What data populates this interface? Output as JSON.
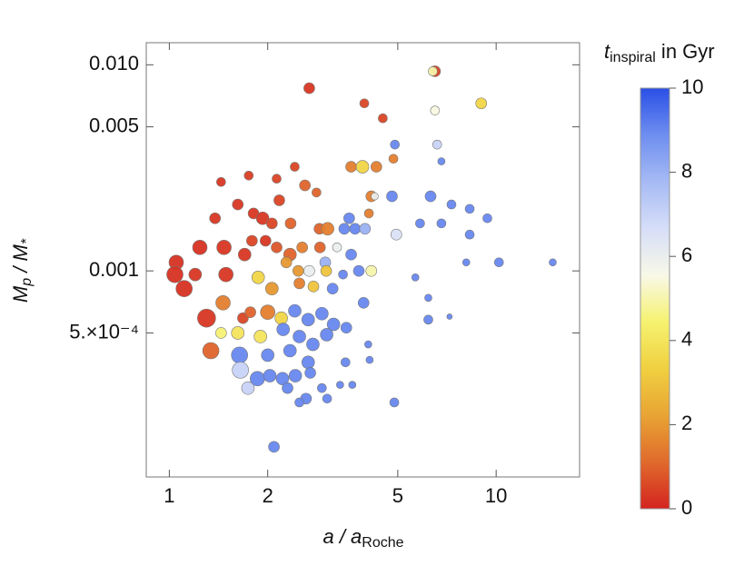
{
  "chart_data": {
    "type": "scatter",
    "x_label": {
      "text": "a / a",
      "sub": "Roche"
    },
    "y_label": {
      "m1": "M",
      "sub1": "p",
      "m2": " / M",
      "sub2": "*"
    },
    "colorbar_label": {
      "text": "t",
      "sub": "inspiral",
      "rest": " in Gyr"
    },
    "log_x": true,
    "log_y": true,
    "xlim": [
      0.85,
      18
    ],
    "xticks": [
      1,
      2,
      5,
      10
    ],
    "ylim": [
      0.0001,
      0.0128
    ],
    "yticks": [
      {
        "value": 0.0005,
        "label": "5.×10⁻⁴"
      },
      0.001,
      0.005,
      {
        "value": 0.01,
        "label": "0.010"
      }
    ],
    "clim": [
      0,
      10
    ],
    "cticks": [
      0,
      2,
      4,
      6,
      8,
      10
    ],
    "colorscale": [
      "#d42420",
      "#e06a2c",
      "#e8a434",
      "#f0d040",
      "#f6f270",
      "#f8f8e8",
      "#d6def8",
      "#a6baf4",
      "#6e8ef0",
      "#2a4fe6"
    ],
    "x": [
      2.68,
      6.5,
      6.4,
      3.95,
      4.5,
      9.0,
      6.5,
      4.9,
      6.6,
      6.8,
      4.85,
      2.42,
      3.6,
      3.9,
      4.3,
      1.75,
      1.44,
      2.13,
      2.6,
      2.82,
      1.62,
      2.17,
      4.15,
      4.25,
      4.8,
      6.3,
      7.3,
      8.3,
      9.4,
      3.55,
      4.08,
      5.85,
      6.8,
      1.38,
      1.81,
      1.93,
      2.06,
      2.35,
      2.88,
      3.05,
      3.43,
      3.7,
      3.97,
      4.95,
      8.3,
      14.9,
      10.2,
      8.1,
      1.05,
      1.04,
      1.11,
      1.24,
      1.47,
      1.7,
      1.49,
      1.2,
      1.79,
      1.97,
      2.13,
      2.34,
      2.55,
      2.89,
      3.26,
      3.0,
      3.6,
      3.8,
      4.15,
      3.02,
      2.68,
      2.48,
      2.28,
      1.87,
      2.06,
      2.5,
      2.76,
      3.16,
      3.4,
      5.66,
      6.2,
      7.2,
      6.2,
      3.93,
      1.46,
      1.3,
      1.68,
      1.77,
      2.0,
      2.2,
      2.42,
      2.66,
      2.93,
      3.18,
      3.48,
      1.44,
      1.62,
      1.9,
      2.23,
      2.5,
      2.75,
      3.03,
      4.06,
      1.34,
      1.64,
      2.0,
      2.34,
      2.66,
      1.65,
      1.86,
      2.03,
      2.22,
      2.43,
      2.7,
      3.46,
      4.1,
      1.74,
      2.3,
      2.62,
      2.93,
      3.33,
      3.63,
      2.5,
      3.04,
      4.88,
      2.09
    ],
    "values": [
      0.0077,
      0.0093,
      0.0093,
      0.0065,
      0.0055,
      0.0065,
      0.006,
      0.0041,
      0.0041,
      0.0034,
      0.0035,
      0.0032,
      0.0032,
      0.0032,
      0.0032,
      0.0029,
      0.0027,
      0.0028,
      0.0026,
      0.0024,
      0.0021,
      0.0022,
      0.0023,
      0.0023,
      0.0023,
      0.0023,
      0.0021,
      0.002,
      0.0018,
      0.0018,
      0.0019,
      0.0017,
      0.0017,
      0.0018,
      0.0019,
      0.0018,
      0.0017,
      0.0017,
      0.0016,
      0.0016,
      0.0016,
      0.0016,
      0.0016,
      0.0015,
      0.0015,
      0.0011,
      0.0011,
      0.0011,
      0.0011,
      0.00096,
      0.00082,
      0.0013,
      0.0013,
      0.0012,
      0.00096,
      0.00096,
      0.0014,
      0.0014,
      0.0013,
      0.0012,
      0.0013,
      0.0013,
      0.0013,
      0.0011,
      0.0012,
      0.001,
      0.001,
      0.001,
      0.001,
      0.001,
      0.0011,
      0.00093,
      0.00082,
      0.00087,
      0.00084,
      0.00082,
      0.00096,
      0.00093,
      0.00074,
      0.0006,
      0.00058,
      0.0007,
      0.0007,
      0.00059,
      0.00059,
      0.00063,
      0.00063,
      0.00059,
      0.00064,
      0.00058,
      0.00062,
      0.00055,
      0.00053,
      0.0005,
      0.0005,
      0.00048,
      0.00052,
      0.00048,
      0.00044,
      0.00049,
      0.00044,
      0.00041,
      0.00039,
      0.00039,
      0.00041,
      0.00036,
      0.00033,
      0.0003,
      0.00031,
      0.0003,
      0.00031,
      0.00032,
      0.00036,
      0.00037,
      0.00027,
      0.00027,
      0.00024,
      0.00027,
      0.00028,
      0.00028,
      0.00023,
      0.00024,
      0.00023,
      0.00014
    ],
    "sizes": [
      6,
      6,
      5,
      5,
      5,
      6,
      5,
      5,
      5,
      4,
      5,
      5,
      6,
      7,
      6,
      5,
      5,
      5,
      6,
      5,
      6,
      6,
      6,
      4,
      6,
      6,
      5,
      5,
      5,
      6,
      5,
      5,
      5,
      6,
      6,
      7,
      6,
      6,
      6,
      7,
      6,
      6,
      6,
      6,
      5,
      4,
      5,
      4,
      8,
      9,
      9,
      8,
      8,
      7,
      8,
      7,
      6,
      6,
      6,
      7,
      6,
      6,
      5,
      6,
      6,
      6,
      6,
      6,
      6,
      6,
      6,
      7,
      7,
      6,
      6,
      6,
      5,
      4,
      4,
      3,
      5,
      6,
      8,
      10,
      6,
      6,
      8,
      7,
      7,
      7,
      7,
      7,
      6,
      6,
      7,
      7,
      7,
      7,
      7,
      7,
      4,
      9,
      9,
      7,
      7,
      7,
      9,
      8,
      7,
      7,
      7,
      6,
      5,
      4,
      7,
      6,
      6,
      5,
      4,
      4,
      5,
      5,
      5,
      6
    ],
    "t_inspiral": [
      0.3,
      0.5,
      5,
      0.5,
      0.5,
      3.5,
      5.5,
      9,
      7,
      9,
      1.5,
      0.5,
      1.5,
      3.5,
      1.5,
      0.4,
      0.3,
      0.5,
      1,
      1,
      0.3,
      0.5,
      1.5,
      6,
      9,
      9,
      9,
      9,
      9,
      9,
      1.5,
      9,
      9,
      0.3,
      0.3,
      0.3,
      0.5,
      1,
      1,
      1.5,
      9,
      9,
      8,
      6.5,
      9,
      9,
      9,
      9,
      0.2,
      0.2,
      0.2,
      0.2,
      0.3,
      0.3,
      0.3,
      0.3,
      0.5,
      0.3,
      0.8,
      1,
      1.5,
      1,
      6,
      8,
      9,
      9,
      5,
      3,
      6,
      2,
      2,
      3.5,
      2,
      1.5,
      3,
      9,
      9,
      9,
      9,
      9,
      9,
      9,
      1.5,
      0.3,
      0.5,
      1,
      1.5,
      3.5,
      9,
      9,
      9,
      9,
      9,
      4.5,
      4,
      4,
      9,
      9,
      9,
      9,
      9,
      1,
      9,
      9,
      9,
      9,
      7,
      9,
      9,
      9,
      9,
      9,
      9,
      9,
      7,
      9,
      9,
      9,
      9,
      9,
      9,
      9,
      9,
      9
    ]
  }
}
